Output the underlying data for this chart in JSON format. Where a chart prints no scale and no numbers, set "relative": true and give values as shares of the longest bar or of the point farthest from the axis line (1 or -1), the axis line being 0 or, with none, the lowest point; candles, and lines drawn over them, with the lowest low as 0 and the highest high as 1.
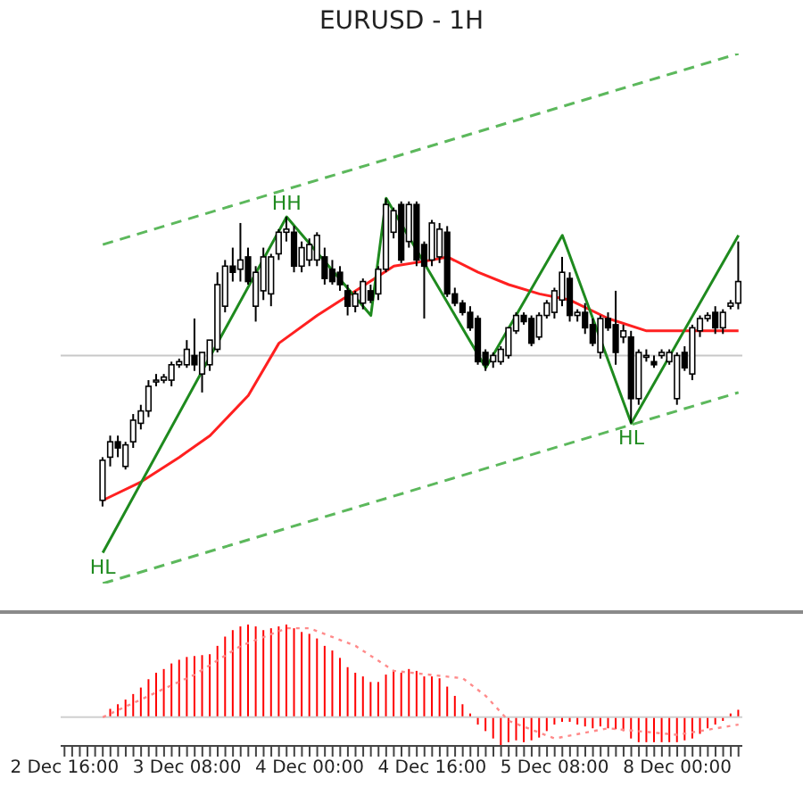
{
  "chart_data": [
    {
      "type": "candlestick",
      "title": "EURUSD - 1H",
      "relative": true,
      "categories": [
        null,
        null,
        null,
        null,
        null,
        null,
        null,
        null,
        null,
        null,
        null,
        null,
        null,
        null,
        null,
        null,
        null,
        null,
        null,
        null,
        null,
        null,
        null,
        null,
        null,
        null,
        null,
        null,
        null,
        null,
        null,
        null,
        null,
        null,
        null,
        null,
        null,
        null,
        null,
        null,
        null,
        null,
        null,
        null,
        null,
        null,
        null,
        null,
        null,
        null,
        null,
        null,
        null,
        null,
        null,
        null,
        null,
        null,
        null,
        null,
        null,
        null,
        null,
        null,
        null,
        null,
        null,
        null,
        null,
        null,
        null,
        null,
        null,
        null,
        null,
        null,
        null,
        null,
        null,
        null,
        null,
        null,
        null,
        null,
        null,
        null,
        null,
        null,
        null
      ],
      "ohlc": [
        null,
        null,
        null,
        null,
        null,
        [
          0.02,
          0.16,
          0,
          0.15
        ],
        [
          0.16,
          0.23,
          0.13,
          0.21
        ],
        [
          0.21,
          0.23,
          0.16,
          0.19
        ],
        [
          0.13,
          0.21,
          0.12,
          0.2
        ],
        [
          0.21,
          0.3,
          0.19,
          0.28
        ],
        [
          0.27,
          0.33,
          0.25,
          0.31
        ],
        [
          0.31,
          0.41,
          0.29,
          0.39
        ],
        [
          0.41,
          0.43,
          0.39,
          0.41
        ],
        [
          0.41,
          0.43,
          0.4,
          0.42
        ],
        [
          0.41,
          0.47,
          0.39,
          0.46
        ],
        [
          0.46,
          0.48,
          0.45,
          0.47
        ],
        [
          0.46,
          0.54,
          0.45,
          0.51
        ],
        [
          0.49,
          0.61,
          0.44,
          0.46
        ],
        [
          0.43,
          0.5,
          0.37,
          0.5
        ],
        [
          0.46,
          0.54,
          0.44,
          0.54
        ],
        [
          0.51,
          0.76,
          0.5,
          0.72
        ],
        [
          0.65,
          0.8,
          0.63,
          0.78
        ],
        [
          0.78,
          0.84,
          0.73,
          0.76
        ],
        [
          0.77,
          0.92,
          0.73,
          0.8
        ],
        [
          0.81,
          0.84,
          0.72,
          0.73
        ],
        [
          0.65,
          0.78,
          0.6,
          0.76
        ],
        [
          0.7,
          0.84,
          0.67,
          0.81
        ],
        [
          0.69,
          0.82,
          0.65,
          0.81
        ],
        [
          0.82,
          0.9,
          0.8,
          0.89
        ],
        [
          0.89,
          0.94,
          0.86,
          0.9
        ],
        [
          0.89,
          0.91,
          0.76,
          0.78
        ],
        [
          0.78,
          0.86,
          0.76,
          0.84
        ],
        [
          0.8,
          0.87,
          0.78,
          0.85
        ],
        [
          0.8,
          0.89,
          0.78,
          0.88
        ],
        [
          0.81,
          0.84,
          0.72,
          0.74
        ],
        [
          0.77,
          0.8,
          0.72,
          0.73
        ],
        [
          0.76,
          0.78,
          0.7,
          0.72
        ],
        [
          0.7,
          0.72,
          0.62,
          0.65
        ],
        [
          0.65,
          0.7,
          0.63,
          0.69
        ],
        [
          0.66,
          0.74,
          0.64,
          0.73
        ],
        [
          0.7,
          0.72,
          0.66,
          0.67
        ],
        [
          0.69,
          0.78,
          0.67,
          0.77
        ],
        [
          0.77,
          1,
          0.76,
          0.98
        ],
        [
          0.89,
          0.97,
          0.87,
          0.96
        ],
        [
          0.98,
          0.99,
          0.79,
          0.8
        ],
        [
          0.86,
          0.99,
          0.84,
          0.98
        ],
        [
          0.98,
          0.99,
          0.78,
          0.8
        ],
        [
          0.85,
          0.86,
          0.61,
          0.78
        ],
        [
          0.8,
          0.93,
          0.78,
          0.92
        ],
        [
          0.81,
          0.92,
          0.79,
          0.9
        ],
        [
          0.89,
          0.91,
          0.68,
          0.69
        ],
        [
          0.69,
          0.71,
          0.65,
          0.66
        ],
        [
          0.66,
          0.67,
          0.62,
          0.63
        ],
        [
          0.63,
          0.65,
          0.57,
          0.58
        ],
        [
          0.61,
          0.62,
          0.46,
          0.47
        ],
        [
          0.5,
          0.51,
          0.44,
          0.46
        ],
        [
          0.47,
          0.5,
          0.45,
          0.49
        ],
        [
          0.47,
          0.52,
          0.46,
          0.51
        ],
        [
          0.49,
          0.58,
          0.48,
          0.58
        ],
        [
          0.57,
          0.63,
          0.56,
          0.62
        ],
        [
          0.62,
          0.63,
          0.59,
          0.6
        ],
        [
          0.61,
          0.62,
          0.52,
          0.53
        ],
        [
          0.55,
          0.63,
          0.54,
          0.62
        ],
        [
          0.62,
          0.67,
          0.61,
          0.66
        ],
        [
          0.63,
          0.71,
          0.61,
          0.7
        ],
        [
          0.67,
          0.81,
          0.65,
          0.76
        ],
        [
          0.74,
          0.76,
          0.6,
          0.62
        ],
        [
          0.62,
          0.64,
          0.6,
          0.63
        ],
        [
          0.63,
          0.66,
          0.56,
          0.58
        ],
        [
          0.59,
          0.61,
          0.52,
          0.53
        ],
        [
          0.5,
          0.62,
          0.48,
          0.61
        ],
        [
          0.61,
          0.63,
          0.57,
          0.58
        ],
        [
          0.59,
          0.7,
          0.46,
          0.5
        ],
        [
          0.55,
          0.59,
          0.53,
          0.57
        ],
        [
          0.55,
          0.57,
          0.27,
          0.35
        ],
        [
          0.35,
          0.51,
          0.33,
          0.5
        ],
        [
          0.49,
          0.51,
          0.47,
          0.49
        ],
        [
          0.47,
          0.49,
          0.45,
          0.46
        ],
        [
          0.49,
          0.51,
          0.48,
          0.5
        ],
        [
          0.47,
          0.51,
          0.46,
          0.5
        ],
        [
          0.35,
          0.5,
          0.33,
          0.49
        ],
        [
          0.5,
          0.52,
          0.44,
          0.45
        ],
        [
          0.43,
          0.59,
          0.41,
          0.58
        ],
        [
          0.57,
          0.62,
          0.55,
          0.61
        ],
        [
          0.61,
          0.63,
          0.6,
          0.62
        ],
        [
          0.63,
          0.65,
          0.56,
          0.58
        ],
        [
          0.58,
          0.64,
          0.56,
          0.63
        ],
        [
          0.65,
          0.67,
          0.64,
          0.66
        ],
        [
          0.66,
          0.86,
          0.64,
          0.73
        ]
      ],
      "series": [
        {
          "type": "line",
          "color": "#ff2020",
          "line_style": "solid",
          "values": [
            null,
            null,
            null,
            null,
            null,
            0.02,
            null,
            null,
            null,
            null,
            0.08,
            null,
            null,
            null,
            null,
            0.16,
            null,
            null,
            null,
            0.23,
            null,
            null,
            null,
            null,
            0.36,
            null,
            null,
            null,
            0.53,
            null,
            null,
            null,
            null,
            0.62,
            null,
            null,
            null,
            null,
            0.7,
            null,
            null,
            null,
            null,
            0.78,
            null,
            null,
            null,
            null,
            0.8,
            null,
            0.81,
            null,
            null,
            null,
            0.76,
            null,
            null,
            null,
            0.72,
            null,
            null,
            null,
            0.69,
            null,
            null,
            null,
            0.67,
            null,
            null,
            null,
            null,
            0.61,
            null,
            null,
            null,
            null,
            0.57,
            null,
            null,
            null,
            null,
            null,
            0.57,
            null,
            null,
            null,
            null,
            null,
            0.57
          ]
        },
        {
          "type": "line",
          "color": "#1e8a1e",
          "line_style": "solid",
          "values": [
            null,
            null,
            null,
            null,
            null,
            -0.15,
            null,
            null,
            null,
            null,
            null,
            null,
            null,
            null,
            null,
            null,
            null,
            null,
            null,
            null,
            null,
            null,
            null,
            null,
            null,
            null,
            null,
            null,
            null,
            0.94,
            null,
            null,
            null,
            null,
            null,
            null,
            null,
            null,
            null,
            null,
            0.62,
            null,
            1,
            null,
            null,
            null,
            null,
            null,
            null,
            null,
            null,
            null,
            null,
            null,
            null,
            0.45,
            null,
            null,
            null,
            null,
            null,
            null,
            null,
            null,
            null,
            0.88,
            null,
            null,
            null,
            null,
            null,
            null,
            null,
            null,
            0.27,
            null,
            null,
            null,
            null,
            null,
            null,
            null,
            null,
            null,
            null,
            null,
            null,
            null,
            0.88
          ]
        },
        {
          "type": "line",
          "color": "#5cb85c",
          "line_style": "dashed",
          "values": [
            null,
            null,
            null,
            null,
            null,
            0.85,
            null,
            null,
            null,
            null,
            null,
            null,
            null,
            null,
            null,
            null,
            null,
            null,
            null,
            null,
            null,
            null,
            null,
            null,
            null,
            null,
            null,
            null,
            null,
            null,
            null,
            null,
            null,
            null,
            null,
            null,
            null,
            null,
            null,
            null,
            null,
            null,
            null,
            null,
            null,
            null,
            null,
            null,
            null,
            null,
            null,
            null,
            null,
            null,
            null,
            null,
            null,
            null,
            null,
            null,
            null,
            null,
            null,
            null,
            null,
            null,
            null,
            null,
            null,
            null,
            null,
            null,
            null,
            null,
            null,
            null,
            null,
            null,
            null,
            null,
            null,
            null,
            null,
            null,
            null,
            null,
            null,
            null,
            1.47
          ]
        },
        {
          "type": "line",
          "color": "#5cb85c",
          "line_style": "dashed",
          "values": [
            null,
            null,
            null,
            null,
            null,
            -0.25,
            null,
            null,
            null,
            null,
            null,
            null,
            null,
            null,
            null,
            null,
            null,
            null,
            null,
            null,
            null,
            null,
            null,
            null,
            null,
            null,
            null,
            null,
            null,
            null,
            null,
            null,
            null,
            null,
            null,
            null,
            null,
            null,
            null,
            null,
            null,
            null,
            null,
            null,
            null,
            null,
            null,
            null,
            null,
            null,
            null,
            null,
            null,
            null,
            null,
            null,
            null,
            null,
            null,
            null,
            null,
            null,
            null,
            null,
            null,
            null,
            null,
            null,
            null,
            null,
            null,
            null,
            null,
            null,
            null,
            null,
            null,
            null,
            null,
            null,
            null,
            null,
            null,
            null,
            null,
            null,
            null,
            null,
            0.37
          ]
        }
      ],
      "ref_lines": [
        {
          "axis": "y",
          "value": 0.49,
          "color": "#c8c8c8"
        }
      ],
      "annotations": [
        {
          "text": "HH",
          "y": 0.94
        },
        {
          "text": "HL",
          "y": -0.15
        },
        {
          "text": "HL",
          "y": 0.27
        }
      ]
    },
    {
      "type": "bar",
      "relative": true,
      "categories": [
        "2 Dec 16:00",
        null,
        null,
        null,
        null,
        null,
        null,
        null,
        null,
        null,
        null,
        null,
        null,
        null,
        null,
        null,
        "3 Dec 08:00",
        null,
        null,
        null,
        null,
        null,
        null,
        null,
        null,
        null,
        null,
        null,
        null,
        null,
        null,
        null,
        "4 Dec 00:00",
        null,
        null,
        null,
        null,
        null,
        null,
        null,
        null,
        null,
        null,
        null,
        null,
        null,
        null,
        null,
        "4 Dec 16:00",
        null,
        null,
        null,
        null,
        null,
        null,
        null,
        null,
        null,
        null,
        null,
        null,
        null,
        null,
        null,
        "5 Dec 08:00",
        null,
        null,
        null,
        null,
        null,
        null,
        null,
        null,
        null,
        null,
        null,
        null,
        null,
        null,
        null,
        "8 Dec 00:00",
        null,
        null,
        null,
        null,
        null,
        null,
        null,
        null
      ],
      "series": [
        {
          "type": "bar",
          "color": "#ff0000",
          "values": [
            null,
            null,
            null,
            null,
            null,
            0,
            0.09,
            0.14,
            0.19,
            0.25,
            0.32,
            0.41,
            0.48,
            0.52,
            0.58,
            0.62,
            0.65,
            0.66,
            0.67,
            0.68,
            0.77,
            0.87,
            0.94,
            0.98,
            1,
            0.98,
            0.94,
            0.96,
            0.98,
            1,
            0.96,
            0.92,
            0.9,
            0.85,
            0.77,
            0.72,
            0.64,
            0.54,
            0.48,
            0.44,
            0.38,
            0.38,
            0.46,
            0.5,
            0.48,
            0.52,
            0.5,
            0.44,
            0.44,
            0.42,
            0.33,
            0.23,
            0.14,
            0.04,
            -0.08,
            -0.15,
            -0.23,
            -0.31,
            -0.27,
            -0.25,
            -0.27,
            -0.25,
            -0.22,
            -0.15,
            -0.08,
            -0.05,
            -0.05,
            -0.08,
            -0.1,
            -0.12,
            -0.1,
            -0.12,
            -0.13,
            -0.15,
            -0.23,
            -0.27,
            -0.27,
            -0.27,
            -0.27,
            -0.27,
            -0.27,
            -0.25,
            -0.23,
            -0.18,
            -0.12,
            -0.08,
            -0.04,
            0.04,
            0.08
          ]
        },
        {
          "type": "line",
          "color": "#ff8a8a",
          "line_style": "dotted",
          "values": [
            null,
            null,
            null,
            null,
            null,
            0,
            null,
            null,
            null,
            null,
            null,
            null,
            null,
            null,
            null,
            null,
            null,
            0.46,
            null,
            null,
            null,
            null,
            null,
            0.77,
            null,
            null,
            null,
            null,
            null,
            0.96,
            null,
            null,
            0.96,
            null,
            null,
            null,
            null,
            null,
            0.77,
            null,
            null,
            null,
            null,
            0.5,
            null,
            null,
            null,
            null,
            null,
            null,
            null,
            null,
            0.42,
            null,
            null,
            0.23,
            null,
            null,
            -0.04,
            null,
            null,
            null,
            null,
            null,
            -0.23,
            null,
            null,
            null,
            null,
            null,
            null,
            -0.12,
            null,
            null,
            null,
            null,
            null,
            null,
            null,
            null,
            -0.19,
            null,
            null,
            null,
            null,
            null,
            null,
            null,
            -0.08
          ]
        }
      ]
    }
  ]
}
